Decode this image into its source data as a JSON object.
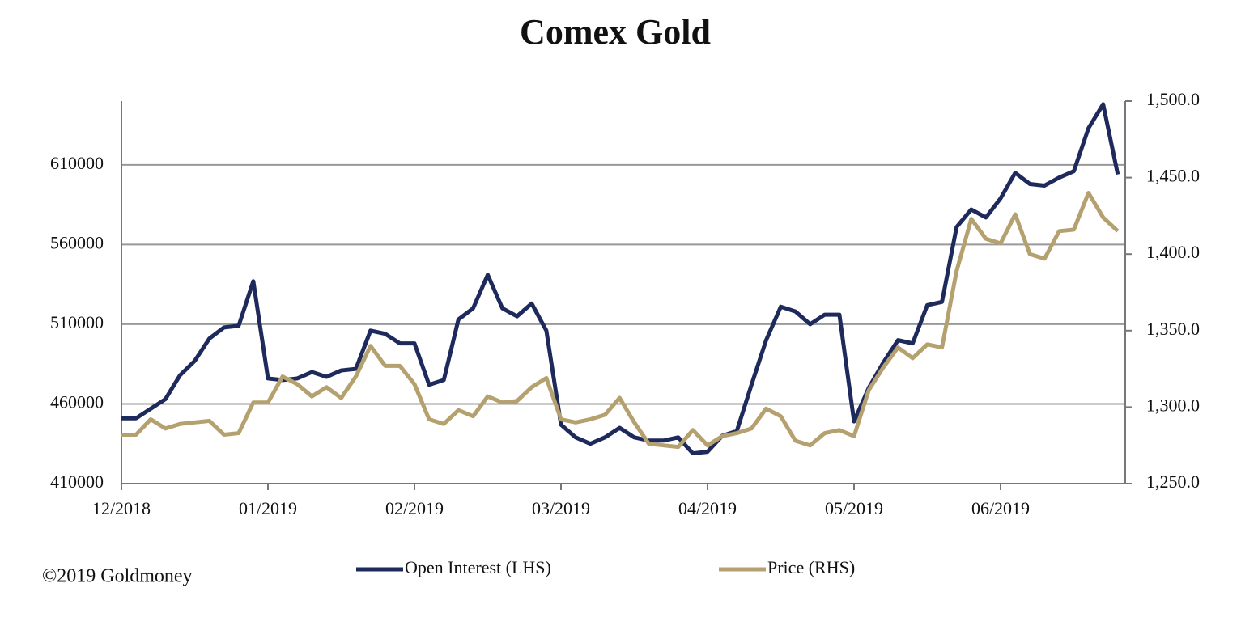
{
  "chart_data": {
    "type": "line",
    "title": "Comex Gold",
    "footer": "©2019 Goldmoney",
    "categories": [
      "12/2018",
      null,
      null,
      null,
      null,
      null,
      null,
      null,
      null,
      null,
      "01/2019",
      null,
      null,
      null,
      null,
      null,
      null,
      null,
      null,
      null,
      "02/2019",
      null,
      null,
      null,
      null,
      null,
      null,
      null,
      null,
      null,
      "03/2019",
      null,
      null,
      null,
      null,
      null,
      null,
      null,
      null,
      null,
      "04/2019",
      null,
      null,
      null,
      null,
      null,
      null,
      null,
      null,
      null,
      "05/2019",
      null,
      null,
      null,
      null,
      null,
      null,
      null,
      null,
      null,
      "06/2019",
      null,
      null,
      null,
      null,
      null,
      null,
      null,
      null
    ],
    "series": [
      {
        "name": "Open Interest (LHS)",
        "color": "#1f2a5c",
        "values": [
          451000,
          451000,
          457000,
          463000,
          478000,
          487000,
          501000,
          508000,
          509000,
          537000,
          476000,
          475000,
          476000,
          480000,
          477000,
          481000,
          482000,
          506000,
          504000,
          498000,
          498000,
          472000,
          475000,
          513000,
          520000,
          541000,
          520000,
          515000,
          523000,
          506000,
          447000,
          439000,
          435000,
          439000,
          445000,
          439000,
          437000,
          437000,
          439000,
          429000,
          430000,
          440000,
          443000,
          472000,
          500000,
          521000,
          518000,
          510000,
          516000,
          516000,
          449000,
          470000,
          486000,
          500000,
          498000,
          522000,
          524000,
          571000,
          582000,
          577000,
          589000,
          605000,
          598000,
          597000,
          602000,
          606000,
          633000,
          648000,
          604000
        ]
      },
      {
        "name": "Price (RHS)",
        "color": "#b5a16f",
        "axis": "y2",
        "values": [
          1282,
          1282,
          1292,
          1286,
          1289,
          1290,
          1291,
          1282,
          1283,
          1303,
          1303,
          1320,
          1315,
          1307,
          1313,
          1306,
          1320,
          1340,
          1327,
          1327,
          1315,
          1292,
          1289,
          1298,
          1294,
          1307,
          1303,
          1304,
          1313,
          1319,
          1292,
          1290,
          1292,
          1295,
          1306,
          1290,
          1276,
          1275,
          1274,
          1285,
          1275,
          1281,
          1283,
          1286,
          1299,
          1294,
          1278,
          1275,
          1283,
          1285,
          1281,
          1311,
          1326,
          1339,
          1332,
          1341,
          1339,
          1389,
          1423,
          1410,
          1407,
          1426,
          1400,
          1397,
          1415,
          1416,
          1440,
          1424,
          1415
        ]
      }
    ],
    "ylim": [
      410000,
      650000
    ],
    "yticks": [
      410000,
      460000,
      510000,
      560000,
      610000
    ],
    "y2lim": [
      1250,
      1500
    ],
    "y2ticks": [
      {
        "value": 1250,
        "label": "1,250.0"
      },
      {
        "value": 1300,
        "label": "1,300.0"
      },
      {
        "value": 1350,
        "label": "1,350.0"
      },
      {
        "value": 1400,
        "label": "1,400.0"
      },
      {
        "value": 1450,
        "label": "1,450.0"
      },
      {
        "value": 1500,
        "label": "1,500.0"
      }
    ],
    "grid": true,
    "legend": "bottom"
  }
}
